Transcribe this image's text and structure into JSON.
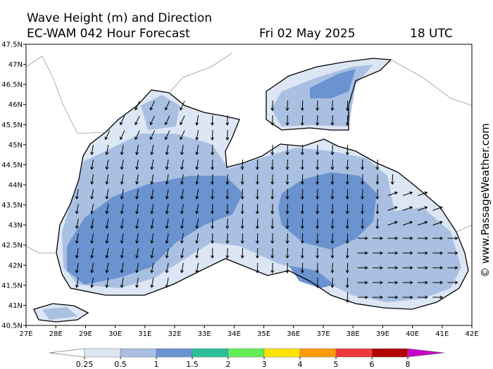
{
  "title": "Wave Height (m) and Direction",
  "subtitle": "EC-WAM 042 Hour Forecast",
  "date": "Fri 02 May 2025",
  "time": "18 UTC",
  "watermark": "© www.PassageWeather.com",
  "lat_labels": [
    "47.5N",
    "47N",
    "46.5N",
    "46N",
    "45.5N",
    "45N",
    "44.5N",
    "44N",
    "43.5N",
    "43N",
    "42.5N",
    "42N",
    "41.5N",
    "41N",
    "40.5N"
  ],
  "lon_labels": [
    "27E",
    "28E",
    "29E",
    "30E",
    "31E",
    "32E",
    "33E",
    "34E",
    "35E",
    "36E",
    "37E",
    "38E",
    "39E",
    "40E",
    "41E",
    "42E"
  ],
  "colorbar": {
    "levels": [
      0.25,
      0.5,
      1,
      1.5,
      2,
      3,
      4,
      5,
      6,
      8
    ],
    "colors": [
      "#ffffff",
      "#dde6f4",
      "#a9c0e2",
      "#6a93d0",
      "#2bbf9a",
      "#63ee57",
      "#ffe400",
      "#ff9900",
      "#ee3a3a",
      "#b30000",
      "#c800c8"
    ]
  }
}
